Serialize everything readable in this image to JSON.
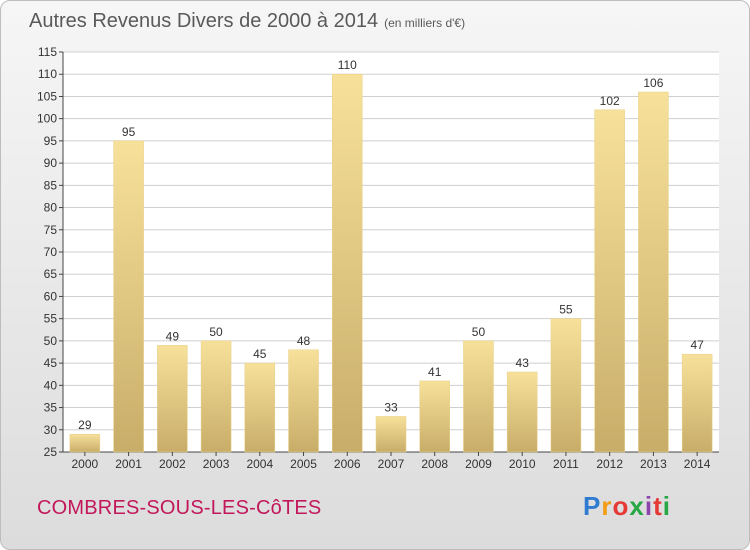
{
  "header": {
    "title": "Autres Revenus Divers de 2000 à 2014",
    "unit": "(en milliers d'€)"
  },
  "footer": {
    "commune": "COMBRES-SOUS-LES-CôTES",
    "logo_letters": [
      "P",
      "r",
      "o",
      "x",
      "i",
      "t",
      "i"
    ],
    "logo_colors": [
      "#2e7bd1",
      "#f39c12",
      "#e53935",
      "#27a844",
      "#8e44ad",
      "#e53935",
      "#27a844"
    ]
  },
  "colors": {
    "bar_light": "#f7e19a",
    "bar_dark": "#c8ad69",
    "axis": "#444444",
    "grid": "#cfcfcf"
  },
  "chart_data": {
    "type": "bar",
    "title": "Autres Revenus Divers de 2000 à 2014",
    "subtitle": "(en milliers d'€)",
    "categories": [
      "2000",
      "2001",
      "2002",
      "2003",
      "2004",
      "2005",
      "2006",
      "2007",
      "2008",
      "2009",
      "2010",
      "2011",
      "2012",
      "2013",
      "2014"
    ],
    "values": [
      29,
      95,
      49,
      50,
      45,
      48,
      110,
      33,
      41,
      50,
      43,
      55,
      102,
      106,
      47
    ],
    "ylim": [
      25,
      115
    ],
    "yticks": [
      25,
      30,
      35,
      40,
      45,
      50,
      55,
      60,
      65,
      70,
      75,
      80,
      85,
      90,
      95,
      100,
      105,
      110,
      115
    ],
    "grid": true
  }
}
